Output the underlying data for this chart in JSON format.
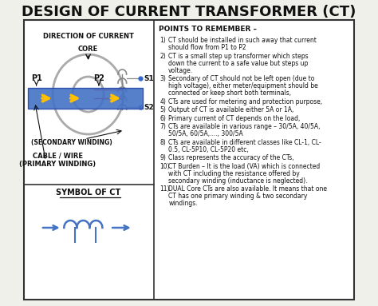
{
  "title": "DESIGN OF CURRENT TRANSFORMER (CT)",
  "bg_color": "#f0f0eb",
  "box_bg": "#ffffff",
  "border_color": "#333333",
  "title_fontsize": 13,
  "points_title": "POINTS TO REMEMBER –",
  "points": [
    "CT should be installed in such away that current\nshould flow from P1 to P2",
    "CT is a small step up transformer which steps\ndown the current to a safe value but steps up\nvoltage.",
    "Secondary of CT should not be left open (due to\nhigh voltage), either meter/equipment should be\nconnected or keep short both terminals,",
    "CTs are used for metering and protection purpose,",
    "Output of CT is available either 5A or 1A,",
    "Primary current of CT depends on the load,",
    "CTs are available in various range – 30/5A, 40/5A,\n50/5A, 60/5A,...., 300/5A",
    "CTs are available in different classes like CL-1, CL-\n0.5, CL-5P10, CL-5P20 etc,",
    "Class represents the accuracy of the CTs,",
    "CT Burden – It is the load (VA) which is connected\nwith CT including the resistance offered by\nsecondary winding (inductance is neglected).",
    "DUAL Core CTs are also available. It means that one\nCT has one primary winding & two secondary\nwindings."
  ],
  "left_labels": {
    "direction": "DIRECTION OF CURRENT",
    "core": "CORE",
    "p1": "P1",
    "p2": "P2",
    "s1": "S1",
    "s2": "S2",
    "secondary": "(SECONDARY WINDING)",
    "cable": "CABLE / WIRE",
    "primary": "(PRIMARY WINDING)",
    "symbol": "SYMBOL OF CT"
  },
  "cable_color": "#4472c4",
  "arrow_color": "#ffc000",
  "symbol_color": "#4472c4",
  "core_color": "#aaaaaa",
  "coil_color": "#888888"
}
